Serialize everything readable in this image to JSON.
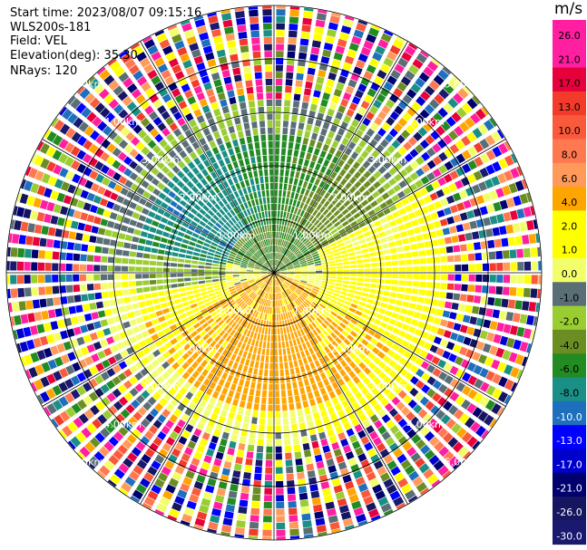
{
  "info": {
    "start_time": "Start time: 2023/08/07 09:15:16",
    "instrument": "WLS200s-181",
    "field": "Field: VEL",
    "elevation": "Elevation(deg): 35.30",
    "nrays": "NRays: 120"
  },
  "colorbar": {
    "unit": "m/s",
    "ticks": [
      "26.0",
      "21.0",
      "17.0",
      "13.0",
      "10.0",
      "8.0",
      "6.0",
      "4.0",
      "2.0",
      "1.0",
      "0.0",
      "-1.0",
      "-2.0",
      "-4.0",
      "-6.0",
      "-8.0",
      "-10.0",
      "-13.0",
      "-17.0",
      "-21.0",
      "-26.0",
      "-30.0"
    ],
    "colors": [
      "#ff1fa0",
      "#ff1fa0",
      "#e6003c",
      "#f23b2a",
      "#fa5a3c",
      "#ff7850",
      "#ff9a5a",
      "#ffa500",
      "#ffff00",
      "#ffff00",
      "#f2ff6a",
      "#5a6e76",
      "#9acd32",
      "#6b8e23",
      "#228b22",
      "#1a8f86",
      "#1e6fbe",
      "#0000ff",
      "#0000cd",
      "#00006e",
      "#151560",
      "#191970"
    ]
  },
  "chart_data": {
    "type": "ppi",
    "rings": [
      {
        "label": "1.00km",
        "km": 1
      },
      {
        "label": "2.00km",
        "km": 2
      },
      {
        "label": "3.00km",
        "km": 3
      },
      {
        "label": "4.00km",
        "km": 4
      },
      {
        "label": "5.00km",
        "km": 5
      }
    ],
    "max_range_km": 5,
    "nrays": 120,
    "velocity_unit": "m/s",
    "vmin": -30,
    "vmax": 26
  }
}
